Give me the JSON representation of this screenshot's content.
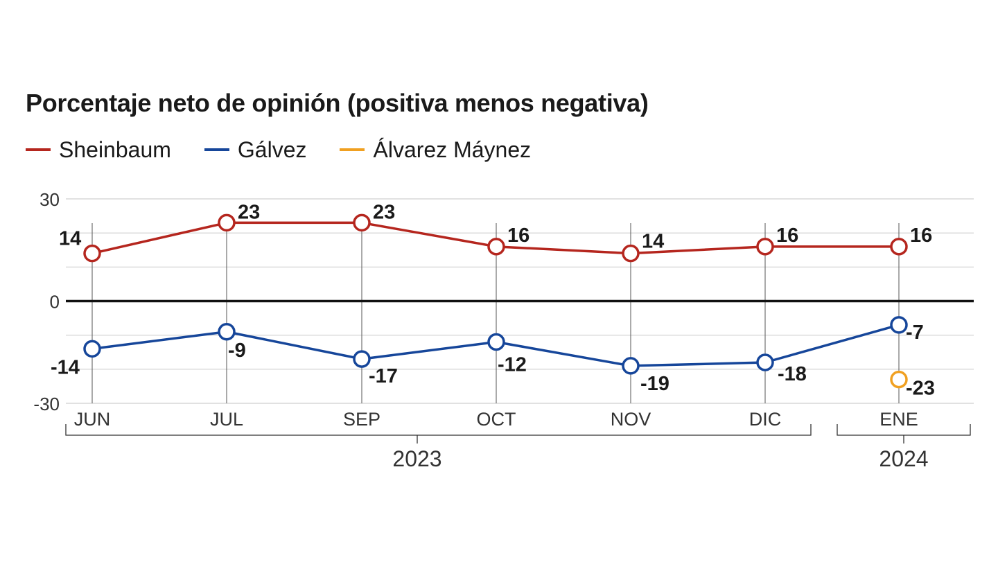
{
  "chart_data": {
    "type": "line",
    "title": "Porcentaje neto de opinión (positiva menos negativa)",
    "categories": [
      "JUN",
      "JUL",
      "SEP",
      "OCT",
      "NOV",
      "DIC",
      "ENE"
    ],
    "year_groups": [
      {
        "label": "2023",
        "categories": [
          "JUN",
          "JUL",
          "SEP",
          "OCT",
          "NOV",
          "DIC"
        ]
      },
      {
        "label": "2024",
        "categories": [
          "ENE"
        ]
      }
    ],
    "ylim": [
      -30,
      30
    ],
    "yticks": [
      "30",
      "0",
      "-30"
    ],
    "grid": true,
    "legend_position": "top-left",
    "series": [
      {
        "name": "Sheinbaum",
        "color": "#b5261e",
        "values": [
          14,
          23,
          23,
          16,
          14,
          16,
          16
        ]
      },
      {
        "name": "Gálvez",
        "color": "#16469a",
        "values": [
          -14,
          -9,
          -17,
          -12,
          -19,
          -18,
          -7
        ]
      },
      {
        "name": "Álvarez Máynez",
        "color": "#f0a021",
        "values": [
          null,
          null,
          null,
          null,
          null,
          null,
          -23
        ]
      }
    ]
  }
}
